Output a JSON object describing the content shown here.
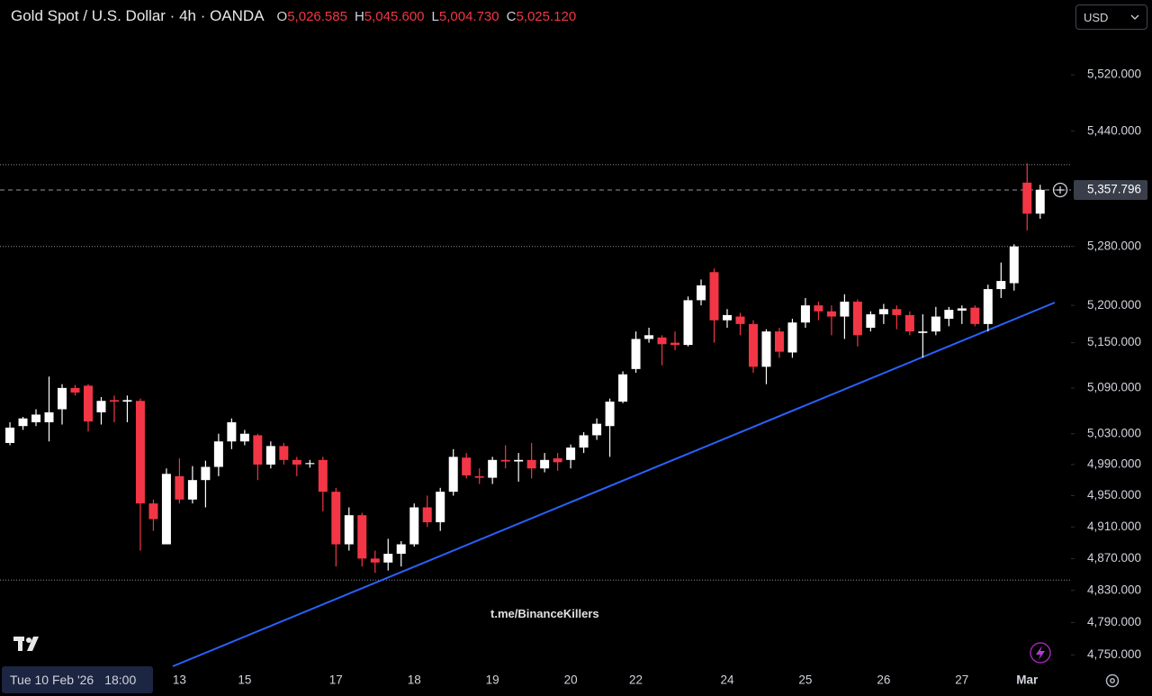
{
  "chart_data": {
    "type": "candlestick",
    "title": "Gold Spot / U.S. Dollar · 4h · OANDA",
    "ohlc_header": [
      {
        "key": "O",
        "value": "5,026.585"
      },
      {
        "key": "H",
        "value": "5,045.600"
      },
      {
        "key": "L",
        "value": "5,004.730"
      },
      {
        "key": "C",
        "value": "5,025.120"
      }
    ],
    "currency": "USD",
    "crosshair_date": "Tue 10 Feb '26",
    "crosshair_time": "18:00",
    "watermark": "t.me/BinanceKillers",
    "up_color": "#ffffff",
    "down_color": "#f23645",
    "log_scale": true,
    "categories": [
      null,
      null,
      null,
      null,
      null,
      null,
      null,
      null,
      null,
      null,
      null,
      null,
      null,
      "13",
      null,
      null,
      null,
      null,
      "15",
      null,
      null,
      null,
      null,
      null,
      null,
      "17",
      null,
      null,
      null,
      null,
      null,
      "18",
      null,
      null,
      null,
      null,
      null,
      "19",
      null,
      null,
      null,
      null,
      null,
      "20",
      null,
      null,
      null,
      null,
      "22",
      null,
      null,
      null,
      null,
      null,
      null,
      "24",
      null,
      null,
      null,
      null,
      null,
      "25",
      null,
      null,
      null,
      null,
      null,
      "26",
      null,
      null,
      null,
      null,
      null,
      "27",
      null,
      null,
      null,
      null,
      "Mar",
      null
    ],
    "open": [
      5018,
      5040,
      5045,
      5045,
      5062,
      5090,
      5093,
      5058,
      5074,
      5072,
      5073,
      4940,
      4888,
      4975,
      4945,
      4970,
      4987,
      5020,
      5020,
      5028,
      4990,
      5014,
      4996,
      4991,
      4996,
      4955,
      4888,
      4925,
      4870,
      4865,
      4876,
      4888,
      4935,
      4916,
      4955,
      4999,
      4975,
      4973,
      4996,
      4994,
      4996,
      4985,
      4998,
      4996,
      5012,
      5028,
      5040,
      5072,
      5115,
      5155,
      5157,
      5150,
      5147,
      5207,
      5245,
      5180,
      5185,
      5175,
      5118,
      5165,
      5137,
      5177,
      5200,
      5192,
      5185,
      5205,
      5170,
      5188,
      5195,
      5187,
      5163,
      5165,
      5182,
      5193,
      5197,
      5175,
      5222,
      5230,
      5368,
      5325
    ],
    "high": [
      5045,
      5052,
      5062,
      5105,
      5095,
      5094,
      5095,
      5078,
      5080,
      5080,
      5076,
      4945,
      4985,
      4998,
      4988,
      4995,
      5030,
      5050,
      5035,
      5030,
      5020,
      5018,
      5000,
      4996,
      5000,
      4960,
      4935,
      4928,
      4880,
      4895,
      4892,
      4940,
      4950,
      4960,
      5010,
      5005,
      4985,
      5000,
      5015,
      5005,
      5018,
      5005,
      5005,
      5016,
      5032,
      5050,
      5076,
      5112,
      5165,
      5170,
      5160,
      5165,
      5212,
      5235,
      5250,
      5195,
      5190,
      5180,
      5168,
      5170,
      5182,
      5210,
      5205,
      5200,
      5215,
      5208,
      5192,
      5202,
      5200,
      5192,
      5188,
      5198,
      5198,
      5200,
      5200,
      5228,
      5258,
      5283,
      5395,
      5365
    ],
    "low": [
      5015,
      5035,
      5040,
      5020,
      5042,
      5080,
      5033,
      5042,
      5045,
      5045,
      4880,
      4905,
      4888,
      4940,
      4940,
      4935,
      4975,
      5010,
      5015,
      4970,
      4985,
      4990,
      4975,
      4986,
      4930,
      4860,
      4880,
      4860,
      4852,
      4855,
      4860,
      4885,
      4910,
      4905,
      4950,
      4972,
      4965,
      4965,
      4985,
      4968,
      4972,
      4980,
      4982,
      4985,
      5005,
      5022,
      5000,
      5070,
      5110,
      5150,
      5120,
      5140,
      5145,
      5200,
      5150,
      5170,
      5160,
      5110,
      5095,
      5130,
      5130,
      5170,
      5180,
      5160,
      5155,
      5145,
      5165,
      5175,
      5168,
      5160,
      5130,
      5160,
      5172,
      5175,
      5172,
      5165,
      5210,
      5220,
      5302,
      5318
    ],
    "close": [
      5038,
      5050,
      5055,
      5058,
      5090,
      5084,
      5046,
      5073,
      5072,
      5074,
      4940,
      4920,
      4978,
      4945,
      4970,
      4987,
      5020,
      5045,
      5030,
      4990,
      5014,
      4996,
      4990,
      4992,
      4955,
      4888,
      4925,
      4870,
      4865,
      4876,
      4888,
      4935,
      4916,
      4955,
      5000,
      4976,
      4973,
      4996,
      4994,
      4996,
      4985,
      4996,
      4993,
      5012,
      5028,
      5043,
      5072,
      5108,
      5155,
      5160,
      5148,
      5147,
      5207,
      5227,
      5180,
      5187,
      5175,
      5118,
      5165,
      5138,
      5177,
      5200,
      5192,
      5185,
      5205,
      5160,
      5188,
      5195,
      5187,
      5165,
      5165,
      5185,
      5194,
      5196,
      5175,
      5222,
      5233,
      5280,
      5325,
      5358
    ],
    "ylim": [
      4736,
      5628
    ],
    "yticks": [
      {
        "value": 4750,
        "label": "4,750.000"
      },
      {
        "value": 4790,
        "label": "4,790.000"
      },
      {
        "value": 4830,
        "label": "4,830.000"
      },
      {
        "value": 4870,
        "label": "4,870.000"
      },
      {
        "value": 4910,
        "label": "4,910.000"
      },
      {
        "value": 4950,
        "label": "4,950.000"
      },
      {
        "value": 4990,
        "label": "4,990.000"
      },
      {
        "value": 5030,
        "label": "5,030.000"
      },
      {
        "value": 5090,
        "label": "5,090.000"
      },
      {
        "value": 5150,
        "label": "5,150.000"
      },
      {
        "value": 5200,
        "label": "5,200.000"
      },
      {
        "value": 5280,
        "label": "5,280.000"
      },
      {
        "value": 5440,
        "label": "5,440.000"
      },
      {
        "value": 5520,
        "label": "5,520.000"
      }
    ],
    "last_price": {
      "value": 5357.796,
      "label": "5,357.796"
    },
    "horizontal_lines": [
      5393,
      5280,
      4843
    ]
  }
}
